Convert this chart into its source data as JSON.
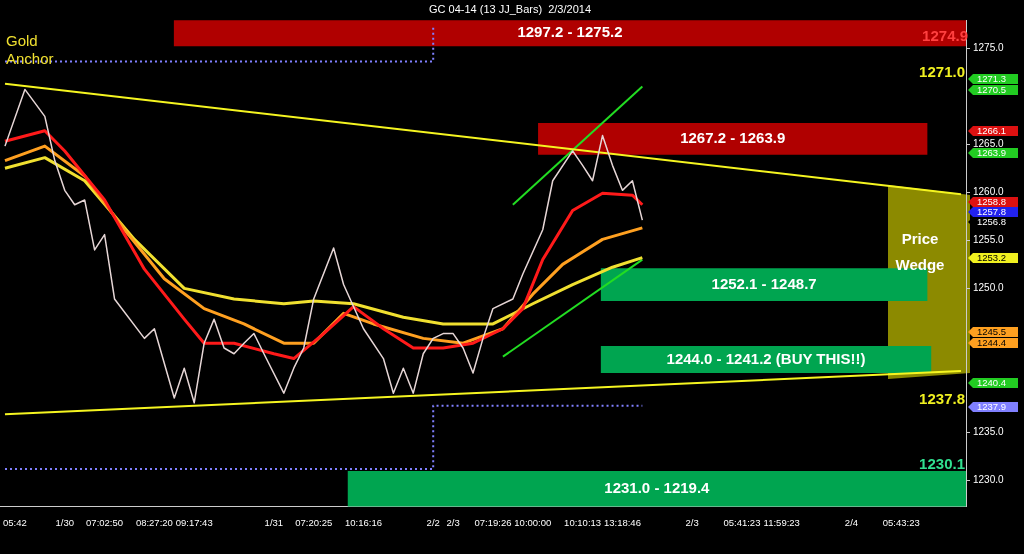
{
  "chart_data": {
    "type": "line",
    "title": "GC 04-14 (13 JJ_Bars)  2/3/2014",
    "categories": [
      null,
      "05:42",
      null,
      null,
      null,
      null,
      "1/30",
      null,
      null,
      null,
      "07:02:50",
      null,
      null,
      null,
      null,
      "08:27:20",
      null,
      null,
      null,
      "09:17:43",
      null,
      null,
      null,
      null,
      null,
      null,
      null,
      "1/31",
      null,
      null,
      null,
      "07:20:25",
      null,
      null,
      null,
      null,
      "10:16:16",
      null,
      null,
      null,
      null,
      null,
      null,
      "2/2",
      null,
      "2/3",
      null,
      null,
      null,
      "07:19:26",
      null,
      null,
      null,
      "10:00:00",
      null,
      null,
      null,
      null,
      "10:10:13",
      null,
      null,
      null,
      "13:18:46",
      null,
      null,
      null,
      null,
      null,
      null,
      "2/3",
      null,
      null,
      null,
      null,
      "05:41:23",
      null,
      null,
      null,
      "11:59:23",
      null,
      null,
      null,
      null,
      null,
      null,
      "2/4",
      null,
      null,
      null,
      null,
      "05:43:23",
      null,
      null,
      null,
      null,
      null,
      null
    ],
    "ylim": [
      1227.3,
      1277.9
    ],
    "yticks": [
      {
        "value": 1230,
        "label": "1230.0"
      },
      {
        "value": 1235,
        "label": "1235.0"
      },
      {
        "value": 1250,
        "label": "1250.0"
      },
      {
        "value": 1255,
        "label": "1255.0"
      },
      {
        "value": 1260,
        "label": "1260.0"
      },
      {
        "value": 1265,
        "label": "1265.0"
      },
      {
        "value": 1275,
        "label": "1275.0"
      }
    ],
    "grid": false,
    "legend": false,
    "marker": "none",
    "line_style": "solid",
    "series": [
      {
        "color": "#e6d6d6",
        "values": [
          1264.8,
          null,
          1270.7,
          null,
          1267.9,
          1263.3,
          1260.2,
          1258.7,
          1259.2,
          1254.0,
          1255.6,
          1248.9,
          null,
          null,
          1244.8,
          1245.8,
          null,
          1238.6,
          1241.7,
          1238.1,
          1244.3,
          1246.8,
          1243.8,
          1243.2,
          1244.3,
          1245.3,
          1243.2,
          null,
          1239.1,
          1241.7,
          1243.8,
          1248.9,
          null,
          1254.2,
          1250.4,
          null,
          1245.8,
          null,
          1242.7,
          1239.1,
          1241.7,
          1239.1,
          1243.2,
          1244.8,
          1245.3,
          1245.3,
          1243.8,
          1241.2,
          1244.8,
          1247.9,
          null,
          1248.9,
          1251.5,
          null,
          1256.1,
          1261.2,
          null,
          1264.3,
          1262.8,
          1261.2,
          1265.9,
          1262.8,
          1260.2,
          1261.2,
          1257.1,
          null,
          null,
          null,
          null,
          null,
          null,
          null,
          null,
          null,
          null,
          null,
          null,
          null,
          null,
          null,
          null,
          null,
          null,
          null,
          null,
          null,
          null,
          null,
          null,
          null,
          null,
          null,
          null,
          null,
          null,
          null,
          null
        ]
      },
      {
        "color": "#ff1a1a",
        "values": [
          1265.3,
          null,
          null,
          null,
          1266.4,
          null,
          1264.3,
          null,
          null,
          null,
          1259.2,
          null,
          null,
          null,
          1252.0,
          null,
          null,
          null,
          1246.8,
          null,
          1244.3,
          null,
          null,
          1244.3,
          null,
          null,
          null,
          1243.2,
          null,
          1242.7,
          null,
          null,
          1245.3,
          null,
          null,
          1248.1,
          null,
          null,
          1245.8,
          null,
          null,
          1243.8,
          null,
          null,
          1243.8,
          null,
          null,
          1244.3,
          null,
          null,
          1245.8,
          null,
          1247.9,
          null,
          1253.0,
          null,
          null,
          1258.1,
          null,
          null,
          1259.9,
          null,
          null,
          1259.7,
          1258.7,
          null,
          null,
          null,
          null,
          null,
          null,
          null,
          null,
          null,
          null,
          null,
          null,
          null,
          null,
          null,
          null,
          null,
          null,
          null,
          null,
          null,
          null,
          null,
          null,
          null,
          null,
          null,
          null,
          null,
          null,
          null,
          null
        ]
      },
      {
        "color": "#ffa020",
        "values": [
          1263.3,
          null,
          null,
          null,
          1264.8,
          null,
          null,
          null,
          1261.7,
          null,
          null,
          null,
          1256.1,
          null,
          null,
          null,
          1251.0,
          null,
          null,
          null,
          1247.9,
          null,
          null,
          null,
          1246.3,
          null,
          null,
          null,
          1244.3,
          null,
          null,
          1244.3,
          null,
          null,
          1247.4,
          null,
          null,
          1246.3,
          null,
          null,
          null,
          null,
          1244.8,
          null,
          null,
          null,
          1244.3,
          null,
          null,
          null,
          1245.8,
          null,
          null,
          1249.4,
          null,
          null,
          1252.5,
          null,
          null,
          null,
          1255.1,
          null,
          null,
          null,
          1256.3,
          null,
          null,
          null,
          null,
          null,
          null,
          null,
          null,
          null,
          null,
          null,
          null,
          null,
          null,
          null,
          null,
          null,
          null,
          null,
          null,
          null,
          null,
          null,
          null,
          null,
          null,
          null,
          null,
          null,
          null,
          null,
          null
        ]
      },
      {
        "color": "#f0e030",
        "values": [
          1262.5,
          null,
          null,
          null,
          1263.6,
          null,
          null,
          null,
          1261.2,
          null,
          null,
          null,
          null,
          1255.1,
          null,
          null,
          null,
          null,
          1250.0,
          null,
          null,
          null,
          null,
          1248.9,
          null,
          null,
          null,
          null,
          1248.4,
          null,
          null,
          1248.7,
          null,
          null,
          null,
          1248.4,
          null,
          null,
          null,
          null,
          1247.0,
          null,
          null,
          null,
          1246.3,
          null,
          null,
          null,
          null,
          1246.3,
          null,
          null,
          null,
          1248.4,
          null,
          null,
          null,
          1250.4,
          null,
          null,
          null,
          1252.2,
          null,
          null,
          1253.2,
          null,
          null,
          null,
          null,
          null,
          null,
          null,
          null,
          null,
          null,
          null,
          null,
          null,
          null,
          null,
          null,
          null,
          null,
          null,
          null,
          null,
          null,
          null,
          null,
          null,
          null,
          null,
          null,
          null,
          null,
          null,
          null
        ]
      },
      {
        "color": "#f5f520",
        "values": [
          1271.3,
          null,
          null,
          null,
          null,
          null,
          null,
          null,
          null,
          null,
          null,
          null,
          null,
          null,
          null,
          null,
          null,
          null,
          null,
          null,
          null,
          null,
          null,
          null,
          null,
          null,
          null,
          null,
          null,
          null,
          null,
          null,
          null,
          null,
          null,
          null,
          null,
          null,
          null,
          null,
          null,
          null,
          null,
          null,
          null,
          null,
          null,
          null,
          null,
          null,
          null,
          null,
          null,
          null,
          null,
          null,
          null,
          null,
          null,
          null,
          null,
          null,
          null,
          null,
          null,
          null,
          null,
          null,
          null,
          null,
          null,
          null,
          null,
          null,
          null,
          null,
          null,
          null,
          null,
          null,
          null,
          null,
          null,
          null,
          null,
          null,
          null,
          null,
          null,
          null,
          null,
          null,
          null,
          null,
          null,
          null,
          1259.8
        ]
      },
      {
        "color": "#f5f520",
        "values": [
          1236.9,
          null,
          null,
          null,
          null,
          null,
          null,
          null,
          null,
          null,
          null,
          null,
          null,
          null,
          null,
          null,
          null,
          null,
          null,
          null,
          null,
          null,
          null,
          null,
          null,
          null,
          null,
          null,
          null,
          null,
          null,
          null,
          null,
          null,
          null,
          null,
          null,
          null,
          null,
          null,
          null,
          null,
          null,
          null,
          null,
          null,
          null,
          null,
          null,
          null,
          null,
          null,
          null,
          null,
          null,
          null,
          null,
          null,
          null,
          null,
          null,
          null,
          null,
          null,
          null,
          null,
          null,
          null,
          null,
          null,
          null,
          null,
          null,
          null,
          null,
          null,
          null,
          null,
          null,
          null,
          null,
          null,
          null,
          null,
          null,
          null,
          null,
          null,
          null,
          null,
          null,
          null,
          null,
          null,
          null,
          null,
          1241.4
        ]
      },
      {
        "color": "#22dd22",
        "values": [
          null,
          null,
          null,
          null,
          null,
          null,
          null,
          null,
          null,
          null,
          null,
          null,
          null,
          null,
          null,
          null,
          null,
          null,
          null,
          null,
          null,
          null,
          null,
          null,
          null,
          null,
          null,
          null,
          null,
          null,
          null,
          null,
          null,
          null,
          null,
          null,
          null,
          null,
          null,
          null,
          null,
          null,
          null,
          null,
          null,
          null,
          null,
          null,
          null,
          null,
          1242.9,
          null,
          null,
          null,
          null,
          null,
          null,
          null,
          null,
          null,
          null,
          null,
          null,
          null,
          1253.0,
          null,
          null,
          null,
          null,
          null,
          null,
          null,
          null,
          null,
          null,
          null,
          null,
          null,
          null,
          null,
          null,
          null,
          null,
          null,
          null,
          null,
          null,
          null,
          null,
          null,
          null,
          null,
          null,
          null,
          null,
          null,
          null
        ]
      },
      {
        "color": "#22dd22",
        "values": [
          null,
          null,
          null,
          null,
          null,
          null,
          null,
          null,
          null,
          null,
          null,
          null,
          null,
          null,
          null,
          null,
          null,
          null,
          null,
          null,
          null,
          null,
          null,
          null,
          null,
          null,
          null,
          null,
          null,
          null,
          null,
          null,
          null,
          null,
          null,
          null,
          null,
          null,
          null,
          null,
          null,
          null,
          null,
          null,
          null,
          null,
          null,
          null,
          null,
          null,
          null,
          1258.7,
          null,
          null,
          null,
          null,
          null,
          null,
          null,
          null,
          null,
          null,
          null,
          null,
          1271.0,
          null,
          null,
          null,
          null,
          null,
          null,
          null,
          null,
          null,
          null,
          null,
          null,
          null,
          null,
          null,
          null,
          null,
          null,
          null,
          null,
          null,
          null,
          null,
          null,
          null,
          null,
          null,
          null,
          null,
          null,
          null,
          null
        ]
      },
      {
        "type": "step",
        "color": "#8080ff",
        "line_style": "dotted",
        "values": [
          1273.6,
          null,
          null,
          null,
          null,
          null,
          null,
          null,
          null,
          null,
          null,
          null,
          null,
          null,
          null,
          null,
          null,
          null,
          null,
          null,
          null,
          null,
          null,
          null,
          null,
          null,
          null,
          null,
          null,
          null,
          null,
          null,
          null,
          null,
          null,
          null,
          null,
          null,
          null,
          null,
          null,
          null,
          null,
          1277.3,
          null,
          null,
          null,
          null,
          null,
          null,
          null,
          null,
          null,
          null,
          null,
          null,
          null,
          null,
          null,
          null,
          null,
          null,
          null,
          null,
          null,
          null,
          null,
          null,
          null,
          null,
          null,
          null,
          null,
          null,
          null,
          null,
          null,
          null,
          null,
          null,
          null,
          null,
          null,
          null,
          null,
          null,
          null,
          null,
          null,
          null,
          null,
          null,
          null,
          null,
          null,
          null,
          null
        ]
      },
      {
        "type": "step",
        "color": "#8080ff",
        "line_style": "dotted",
        "values": [
          1231.2,
          null,
          null,
          null,
          null,
          null,
          null,
          null,
          null,
          null,
          null,
          null,
          null,
          null,
          null,
          null,
          null,
          null,
          null,
          null,
          null,
          null,
          null,
          null,
          null,
          null,
          null,
          null,
          null,
          null,
          null,
          null,
          null,
          null,
          null,
          null,
          null,
          null,
          null,
          null,
          null,
          null,
          null,
          1237.8,
          null,
          null,
          null,
          null,
          null,
          null,
          null,
          null,
          null,
          null,
          null,
          null,
          null,
          null,
          null,
          null,
          null,
          null,
          null,
          null,
          1237.8,
          null,
          null,
          null,
          null,
          null,
          null,
          null,
          null,
          null,
          null,
          null,
          null,
          null,
          null,
          null,
          null,
          null,
          null,
          null,
          null,
          null,
          null,
          null,
          null,
          null,
          null,
          null,
          null,
          null,
          null,
          null,
          null
        ]
      }
    ],
    "bands": [
      {
        "axis": "y",
        "from": 1275.2,
        "to": 1297.2,
        "label": "1297.2 - 1275.2",
        "color": "#b00000"
      },
      {
        "axis": "y",
        "from": 1263.9,
        "to": 1267.2,
        "label": "1267.2 - 1263.9",
        "color": "#b00000"
      },
      {
        "axis": "y",
        "from": 1248.7,
        "to": 1252.1,
        "label": "1252.1 - 1248.7",
        "color": "#00a550"
      },
      {
        "axis": "y",
        "from": 1241.2,
        "to": 1244.0,
        "label": "1244.0 - 1241.2 (BUY THIS!!)",
        "color": "#00a550"
      },
      {
        "axis": "y",
        "from": 1219.4,
        "to": 1231.0,
        "label": "1231.0 - 1219.4",
        "color": "#00a550"
      }
    ],
    "annotations": [
      "Gold Anchor",
      "Price Wedge",
      "1274.9",
      "1271.0",
      "1237.8",
      "1230.1",
      "1271.3",
      "1270.5",
      "1266.1",
      "1263.9",
      "1258.8",
      "1257.8",
      "1256.8",
      "1253.2",
      "1245.5",
      "1244.4",
      "1240.4",
      "1237.9"
    ]
  }
}
